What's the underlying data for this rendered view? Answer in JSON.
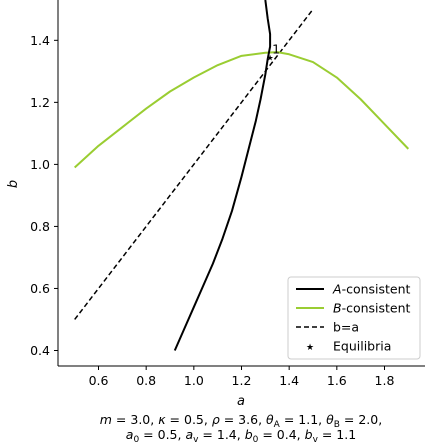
{
  "chart_data": {
    "type": "line",
    "xlabel": "a",
    "ylabel": "b",
    "xlim": [
      0.43,
      1.97
    ],
    "ylim": [
      0.35,
      1.53
    ],
    "xticks": [
      "0.6",
      "0.8",
      "1.0",
      "1.2",
      "1.4",
      "1.6",
      "1.8"
    ],
    "xtick_values": [
      0.6,
      0.8,
      1.0,
      1.2,
      1.4,
      1.6,
      1.8
    ],
    "yticks": [
      "0.4",
      "0.6",
      "0.8",
      "1.0",
      "1.2",
      "1.4"
    ],
    "ytick_values": [
      0.4,
      0.6,
      0.8,
      1.0,
      1.2,
      1.4
    ],
    "grid": false,
    "legend_position": "lower right",
    "series": [
      {
        "name": "A-consistent",
        "color": "#000000",
        "style": "solid",
        "x": [
          0.92,
          0.96,
          1.0,
          1.04,
          1.08,
          1.12,
          1.16,
          1.2,
          1.23,
          1.26,
          1.28,
          1.3,
          1.31,
          1.32,
          1.32,
          1.31,
          1.3
        ],
        "y": [
          0.4,
          0.47,
          0.54,
          0.61,
          0.68,
          0.76,
          0.85,
          0.96,
          1.05,
          1.14,
          1.21,
          1.29,
          1.34,
          1.38,
          1.42,
          1.47,
          1.53
        ]
      },
      {
        "name": "B-consistent",
        "color": "#9acd32",
        "style": "solid",
        "x": [
          0.5,
          0.6,
          0.7,
          0.8,
          0.9,
          1.0,
          1.1,
          1.2,
          1.3,
          1.35,
          1.4,
          1.5,
          1.6,
          1.7,
          1.8,
          1.9
        ],
        "y": [
          0.99,
          1.06,
          1.12,
          1.18,
          1.235,
          1.28,
          1.32,
          1.35,
          1.36,
          1.362,
          1.355,
          1.33,
          1.28,
          1.21,
          1.13,
          1.05
        ]
      },
      {
        "name": "b=a",
        "color": "#000000",
        "style": "dashed",
        "x": [
          0.5,
          1.5
        ],
        "y": [
          0.5,
          1.5
        ]
      }
    ],
    "equilibria": {
      "name": "Equilibria",
      "points": [
        {
          "x": 1.32,
          "y": 1.345,
          "label": "1"
        }
      ]
    },
    "caption_line1": "m = 3.0, κ = 0.5, ρ = 3.6, θ",
    "caption_line2": "a"
  },
  "legend": {
    "a_prefix": "A",
    "a_suffix": "-consistent",
    "b_prefix": "B",
    "b_suffix": "-consistent",
    "diag": "b=a",
    "equilibria": "Equilibria"
  },
  "caption": {
    "line1_parts": [
      "m",
      " = 3.0, ",
      "κ",
      " = 0.5, ",
      "ρ",
      " = 3.6, ",
      "θ",
      "A",
      " = 1.1, ",
      "θ",
      "B",
      " = 2.0,"
    ],
    "line2_parts": [
      "a",
      "0",
      " = 0.5, ",
      "a",
      "v",
      " = 1.4, ",
      "b",
      "0",
      " = 0.4, ",
      "b",
      "v",
      " = 1.1"
    ]
  }
}
